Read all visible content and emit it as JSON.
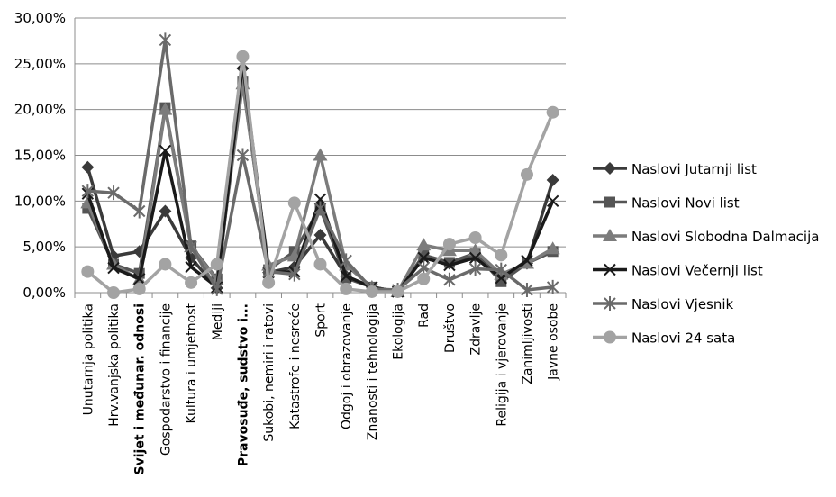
{
  "chart_data": {
    "type": "line",
    "title": "",
    "xlabel": "",
    "ylabel": "",
    "ylim": [
      0,
      30
    ],
    "y_ticks": [
      "0,00%",
      "5,00%",
      "10,00%",
      "15,00%",
      "20,00%",
      "25,00%",
      "30,00%"
    ],
    "grid": "horizontal",
    "legend_position": "right",
    "categories": [
      "Unutarnja politika",
      "Hrv.vanjska politika",
      "Svijet i međunar. odnosi",
      "Gospodarstvo i financije",
      "Kultura i umjetnost",
      "Mediji",
      "Pravosuđe, sudstvo i...",
      "Sukobi, nemiri i ratovi",
      "Katastrofe i nesreće",
      "Sport",
      "Odgoj i obrazovanje",
      "Znanosti i tehnologija",
      "Ekologija",
      "Rad",
      "Društvo",
      "Zdravlje",
      "Religija i vjerovanje",
      "Zanimljivosti",
      "Javne osobe"
    ],
    "bold_categories": [
      2,
      6
    ],
    "series": [
      {
        "name": "Naslovi Jutarnji list",
        "marker": "diamond",
        "color": "#3a3a3a",
        "values": [
          13.7,
          4.0,
          4.5,
          8.9,
          3.8,
          0.5,
          24.5,
          2.2,
          2.8,
          6.3,
          1.8,
          0.6,
          0.1,
          4.0,
          3.2,
          4.0,
          1.8,
          3.2,
          12.3
        ]
      },
      {
        "name": "Naslovi Novi list",
        "marker": "square",
        "color": "#555555",
        "values": [
          9.2,
          3.1,
          2.1,
          20.2,
          5.1,
          1.5,
          23.1,
          2.5,
          4.5,
          9.2,
          1.6,
          0.6,
          0.1,
          4.1,
          3.3,
          4.3,
          1.2,
          3.2,
          4.5
        ]
      },
      {
        "name": "Naslovi Slobodna Dalmacija",
        "marker": "triangle",
        "color": "#7c7c7c",
        "values": [
          9.8,
          3.1,
          1.4,
          20.0,
          5.0,
          1.4,
          22.8,
          3.0,
          4.0,
          15.0,
          3.0,
          0.6,
          0.1,
          5.2,
          4.6,
          4.6,
          2.0,
          3.2,
          4.8
        ]
      },
      {
        "name": "Naslovi Večernji list",
        "marker": "x",
        "color": "#1a1a1a",
        "values": [
          10.8,
          2.7,
          1.5,
          15.5,
          2.8,
          0.6,
          25.0,
          2.2,
          2.3,
          10.2,
          1.8,
          0.6,
          0.1,
          3.8,
          3.0,
          3.8,
          1.6,
          3.5,
          10.0
        ]
      },
      {
        "name": "Naslovi Vjesnik",
        "marker": "star",
        "color": "#6a6a6a",
        "values": [
          11.1,
          10.9,
          8.9,
          27.6,
          5.0,
          0.4,
          15.0,
          2.3,
          2.0,
          9.2,
          3.5,
          0.4,
          0.3,
          2.7,
          1.4,
          2.6,
          2.5,
          0.3,
          0.6
        ]
      },
      {
        "name": "Naslovi 24 sata",
        "marker": "circle",
        "color": "#a3a3a3",
        "values": [
          2.3,
          0.0,
          0.4,
          3.1,
          1.1,
          3.1,
          25.8,
          1.1,
          9.8,
          3.1,
          0.4,
          0.1,
          0.1,
          1.5,
          5.3,
          6.0,
          4.1,
          12.9,
          19.7
        ]
      }
    ]
  }
}
